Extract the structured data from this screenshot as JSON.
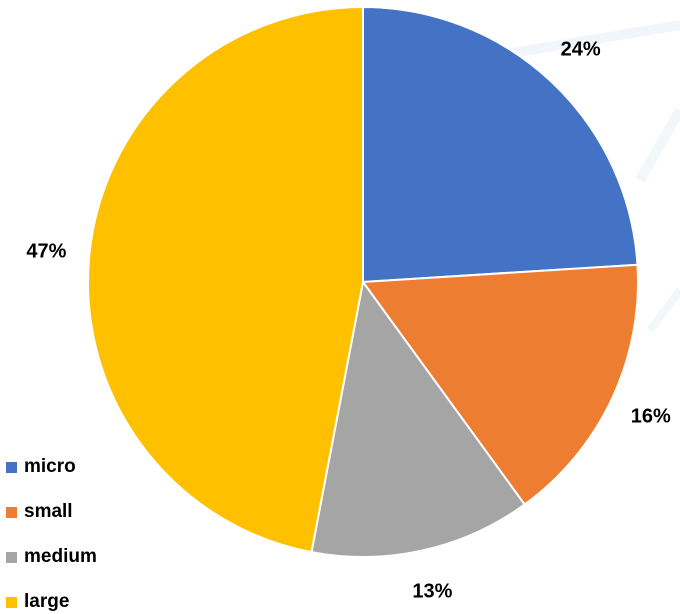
{
  "chart_data": {
    "type": "pie",
    "title": "",
    "categories": [
      "micro",
      "small",
      "medium",
      "large"
    ],
    "values": [
      24,
      16,
      13,
      47
    ],
    "data_labels": [
      "24%",
      "16%",
      "13%",
      "47%"
    ],
    "colors": [
      "#4472C4",
      "#ED7D31",
      "#A5A5A5",
      "#FFC000"
    ],
    "legend_position": "bottom-left",
    "start_angle_deg": 0,
    "direction": "clockwise"
  }
}
